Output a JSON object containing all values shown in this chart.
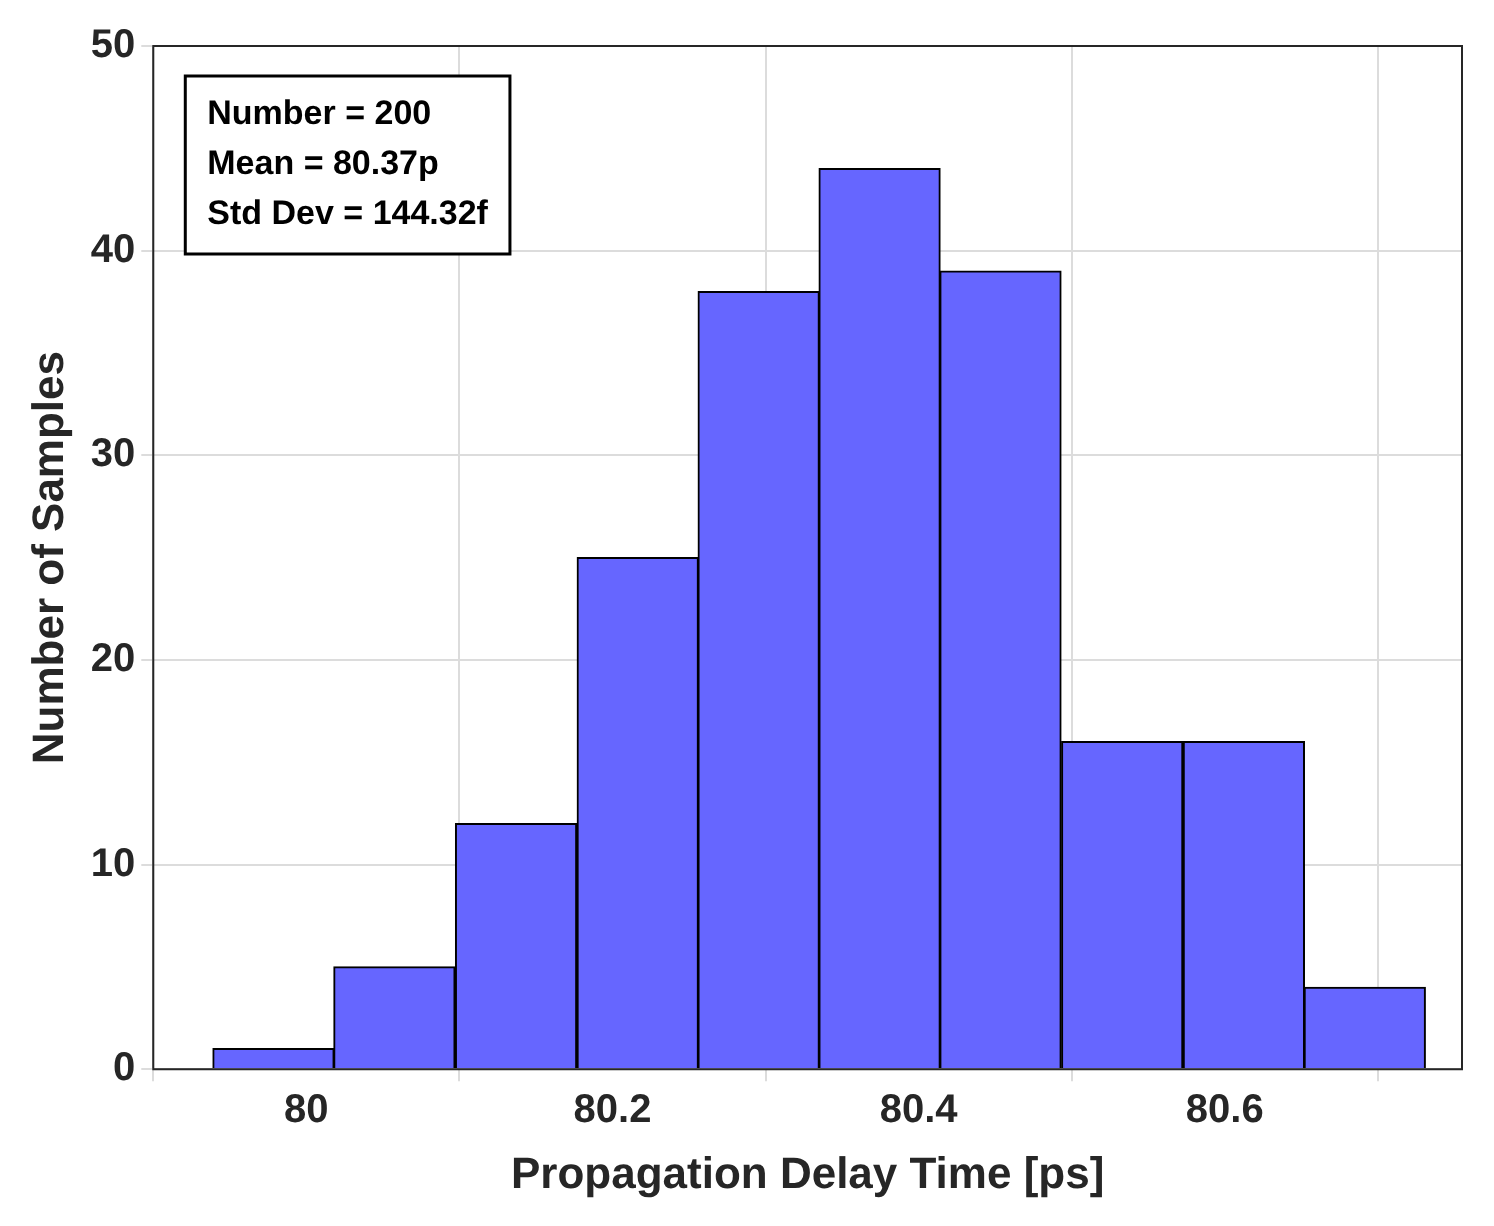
{
  "chart_data": {
    "type": "histogram",
    "xlabel": "Propagation Delay Time [ps]",
    "ylabel": "Number of Samples",
    "bins": [
      79.939,
      80.018,
      80.097,
      80.177,
      80.256,
      80.335,
      80.414,
      80.493,
      80.573,
      80.652,
      80.731
    ],
    "values": [
      1,
      5,
      12,
      25,
      38,
      44,
      39,
      16,
      16,
      4
    ],
    "color": "#6666ff",
    "xlim": [
      79.9,
      80.755
    ],
    "xticks": [
      80,
      80.2,
      80.4,
      80.6
    ],
    "ylim": [
      0,
      50
    ],
    "yticks": [
      0,
      10,
      20,
      30,
      40,
      50
    ],
    "grid": true,
    "annotations": [
      "Number = 200",
      "Mean = 80.37p",
      "Std Dev = 144.32f"
    ]
  }
}
